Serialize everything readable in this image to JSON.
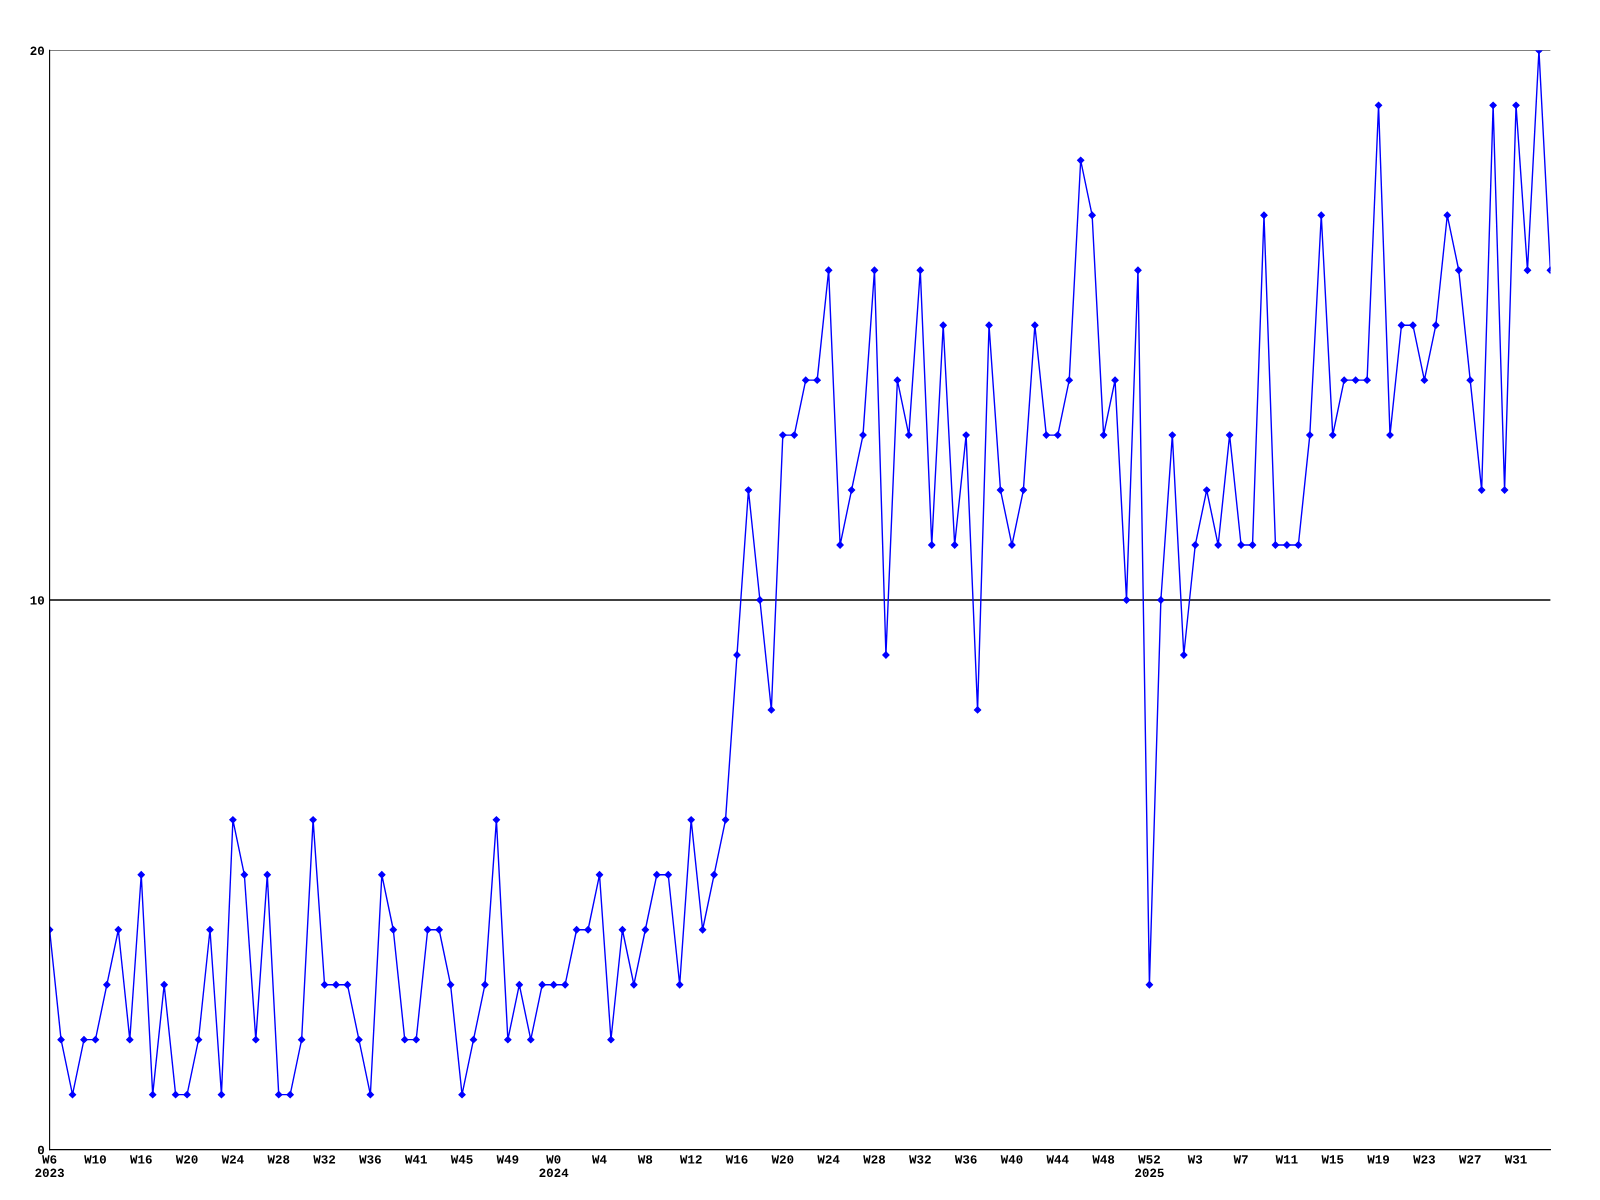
{
  "chart_data": {
    "type": "line",
    "categories": [
      "W6\n2023",
      null,
      null,
      null,
      "W10",
      null,
      null,
      null,
      "W16",
      null,
      null,
      null,
      "W20",
      null,
      null,
      null,
      "W24",
      null,
      null,
      null,
      "W28",
      null,
      null,
      null,
      "W32",
      null,
      null,
      null,
      "W36",
      null,
      null,
      null,
      "W41",
      null,
      null,
      null,
      "W45",
      null,
      null,
      null,
      "W49",
      null,
      null,
      null,
      "W0\n2024",
      null,
      null,
      null,
      "W4",
      null,
      null,
      null,
      "W8",
      null,
      null,
      null,
      "W12",
      null,
      null,
      null,
      "W16",
      null,
      null,
      null,
      "W20",
      null,
      null,
      null,
      "W24",
      null,
      null,
      null,
      "W28",
      null,
      null,
      null,
      "W32",
      null,
      null,
      null,
      "W36",
      null,
      null,
      null,
      "W40",
      null,
      null,
      null,
      "W44",
      null,
      null,
      null,
      "W48",
      null,
      null,
      null,
      "W52\n2025",
      null,
      null,
      null,
      "W3",
      null,
      null,
      null,
      "W7",
      null,
      null,
      null,
      "W11",
      null,
      null,
      null,
      "W15",
      null,
      null,
      null,
      "W19",
      null,
      null,
      null,
      "W23",
      null,
      null,
      null,
      "W27",
      null,
      null,
      null,
      "W31",
      null,
      null,
      null
    ],
    "series": [
      {
        "color": "#0000ff",
        "values": [
          4,
          2,
          1,
          2,
          2,
          3,
          4,
          2,
          5,
          1,
          3,
          1,
          1,
          2,
          4,
          1,
          6,
          5,
          2,
          5,
          1,
          1,
          2,
          6,
          3,
          3,
          3,
          2,
          1,
          5,
          4,
          2,
          2,
          4,
          4,
          3,
          1,
          2,
          3,
          6,
          2,
          3,
          2,
          3,
          3,
          3,
          4,
          4,
          5,
          2,
          4,
          3,
          4,
          5,
          5,
          3,
          6,
          4,
          5,
          6,
          9,
          12,
          10,
          8,
          13,
          13,
          14,
          14,
          16,
          11,
          12,
          13,
          16,
          9,
          14,
          13,
          16,
          11,
          15,
          11,
          13,
          8,
          15,
          12,
          11,
          12,
          15,
          13,
          13,
          14,
          18,
          17,
          13,
          14,
          10,
          16,
          3,
          10,
          13,
          9,
          11,
          12,
          11,
          13,
          11,
          11,
          17,
          11,
          11,
          11,
          13,
          17,
          13,
          14,
          14,
          14,
          19,
          13,
          15,
          15,
          14,
          15,
          17,
          16,
          14,
          12,
          19,
          12,
          19,
          16,
          20,
          16
        ]
      }
    ],
    "ylim": [
      0,
      20
    ],
    "yticks": [
      0,
      10,
      20
    ],
    "grid": "y",
    "marker": "diamond",
    "line_style": "solid"
  }
}
